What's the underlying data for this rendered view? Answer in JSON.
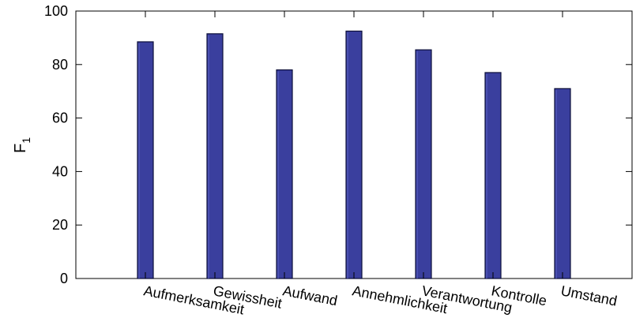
{
  "chart_data": {
    "type": "bar",
    "title": "",
    "xlabel": "",
    "ylabel": "F",
    "ylabel_subscript": "1",
    "categories": [
      "Aufmerksamkeit",
      "Gewissheit",
      "Aufwand",
      "Annehmlichkeit",
      "Verantwortung",
      "Kontrolle",
      "Umstand"
    ],
    "values": [
      88.5,
      91.5,
      78,
      92.5,
      85.5,
      77,
      71
    ],
    "ylim": [
      0,
      100
    ],
    "yticks": [
      "0",
      "20",
      "40",
      "60",
      "80",
      "100"
    ],
    "grid": false,
    "legend": "none",
    "colors": {
      "bar_fill": "#3a3f9e",
      "bar_edge": "#0c0f3a",
      "bar_highlight": "#5a60c4",
      "axis": "#000000"
    }
  }
}
